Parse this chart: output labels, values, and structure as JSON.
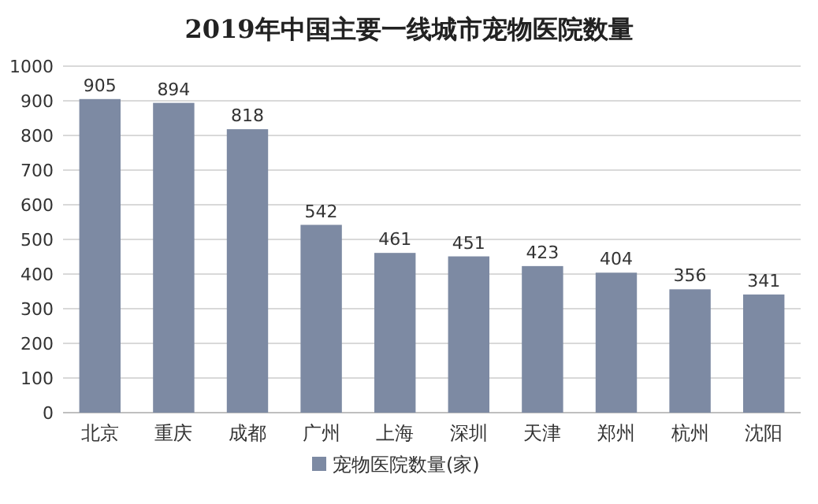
{
  "chart_data": {
    "type": "bar",
    "title": "2019年中国主要一线城市宠物医院数量",
    "categories": [
      "北京",
      "重庆",
      "成都",
      "广州",
      "上海",
      "深圳",
      "天津",
      "郑州",
      "杭州",
      "沈阳"
    ],
    "series": [
      {
        "name": "宠物医院数量(家)",
        "color": "#7d8aa3",
        "values": [
          905,
          894,
          818,
          542,
          461,
          451,
          423,
          404,
          356,
          341
        ]
      }
    ],
    "ylim": [
      0,
      1000
    ],
    "yticks": [
      0,
      100,
      200,
      300,
      400,
      500,
      600,
      700,
      800,
      900,
      1000
    ],
    "grid": "y",
    "legend": "bottom",
    "data_labels": true
  }
}
